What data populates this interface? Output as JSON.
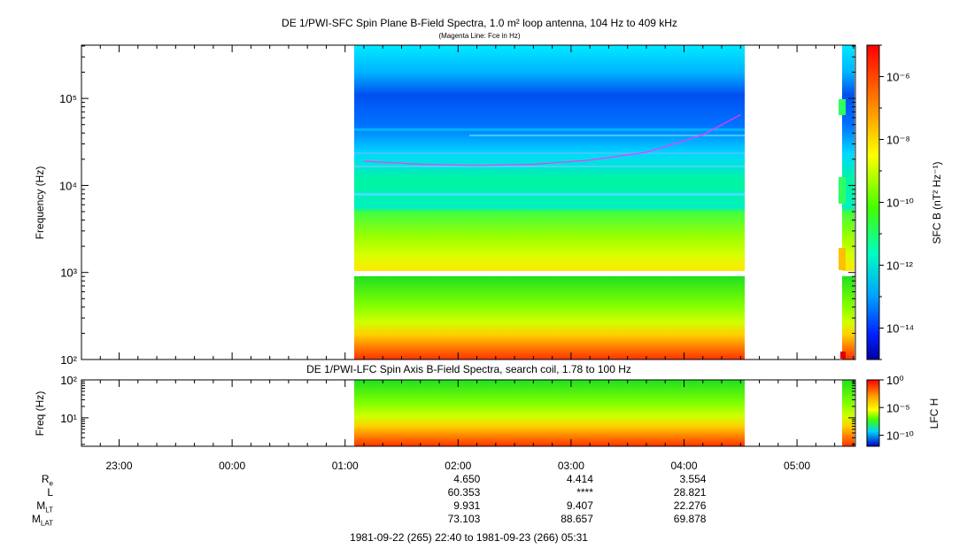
{
  "main_title": "DE 1/PWI-SFC  Spin Plane B-Field Spectra, 1.0 m² loop antenna, 104 Hz to 409 kHz",
  "main_subtitle": "(Magenta Line: Fce in Hz)",
  "lfc_title": "DE 1/PWI-LFC  Spin Axis B-Field Spectra, search coil, 1.78 to 100 Hz",
  "time_range": "1981-09-22 (265) 22:40 to 1981-09-23 (266) 05:31",
  "colors": {
    "fce_line": "#ff33ff",
    "frame": "#000000"
  },
  "chart_data": [
    {
      "type": "heatmap",
      "name": "SFC",
      "ylabel": "Frequency (Hz)",
      "yscale": "log",
      "ylim": [
        100,
        409000
      ],
      "y_ticks": [
        "10²",
        "10³",
        "10⁴",
        "10⁵"
      ],
      "colorbar_label": "SFC B (nT² Hz⁻¹)",
      "colorbar_ticks": [
        "10⁻⁶",
        "10⁻⁸",
        "10⁻¹⁰",
        "10⁻¹²",
        "10⁻¹⁴"
      ],
      "colorbar_scale": "log",
      "colorbar_range": [
        1e-15,
        1e-05
      ],
      "data_intervals": [
        [
          "01:05",
          "04:32"
        ],
        [
          "05:24",
          "05:27"
        ]
      ],
      "fce_line": {
        "x": [
          "01:10",
          "01:40",
          "02:10",
          "02:40",
          "03:10",
          "03:40",
          "04:10",
          "04:30"
        ],
        "y": [
          19000,
          17500,
          17000,
          17500,
          19500,
          24000,
          38000,
          65000
        ]
      }
    },
    {
      "type": "heatmap",
      "name": "LFC",
      "ylabel": "Freq (Hz)",
      "yscale": "log",
      "ylim": [
        1.78,
        100
      ],
      "y_ticks": [
        "10¹",
        "10²"
      ],
      "colorbar_label": "LFC H",
      "colorbar_ticks": [
        "10⁰",
        "10⁻⁵",
        "10⁻¹⁰"
      ],
      "colorbar_scale": "log",
      "colorbar_range": [
        1e-12,
        1
      ],
      "data_intervals": [
        [
          "01:05",
          "04:32"
        ],
        [
          "05:24",
          "05:27"
        ]
      ]
    }
  ],
  "time_axis": {
    "start": "22:40",
    "end": "05:31",
    "ticks": [
      "23:00",
      "00:00",
      "01:00",
      "02:00",
      "03:00",
      "04:00",
      "05:00"
    ]
  },
  "ephemeris": {
    "rows": [
      {
        "label": "R",
        "sub": "e",
        "values": [
          "4.650",
          "4.414",
          "3.554"
        ]
      },
      {
        "label": "L",
        "sub": "",
        "values": [
          "60.353",
          "****",
          "28.821"
        ]
      },
      {
        "label": "M",
        "sub": "LT",
        "values": [
          "9.931",
          "9.407",
          "22.276"
        ]
      },
      {
        "label": "M",
        "sub": "LAT",
        "values": [
          "73.103",
          "88.657",
          "69.878"
        ]
      }
    ],
    "columns_at": [
      "02:00",
      "03:00",
      "04:00"
    ]
  }
}
